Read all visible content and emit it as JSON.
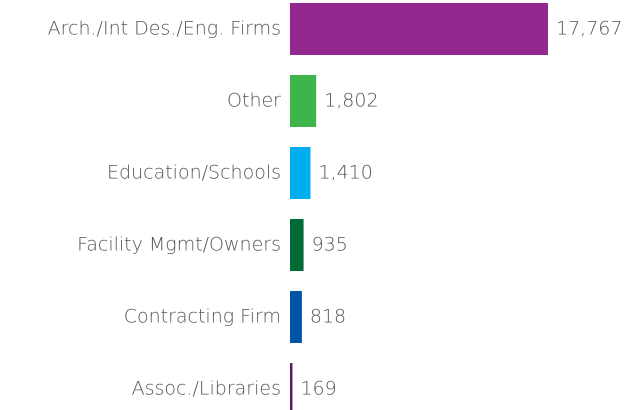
{
  "chart_data": {
    "type": "bar",
    "orientation": "horizontal",
    "categories": [
      "Arch./Int Des./Eng. Firms",
      "Other",
      "Education/Schools",
      "Facility Mgmt/Owners",
      "Contracting Firm",
      "Assoc./Libraries"
    ],
    "values": [
      17767,
      1802,
      1410,
      935,
      818,
      169
    ],
    "value_labels": [
      "17,767",
      "1,802",
      "1,410",
      "935",
      "818",
      "169"
    ],
    "colors": [
      "#93298f",
      "#3db54a",
      "#00aeef",
      "#006b35",
      "#0054a6",
      "#5c1a5c"
    ]
  }
}
